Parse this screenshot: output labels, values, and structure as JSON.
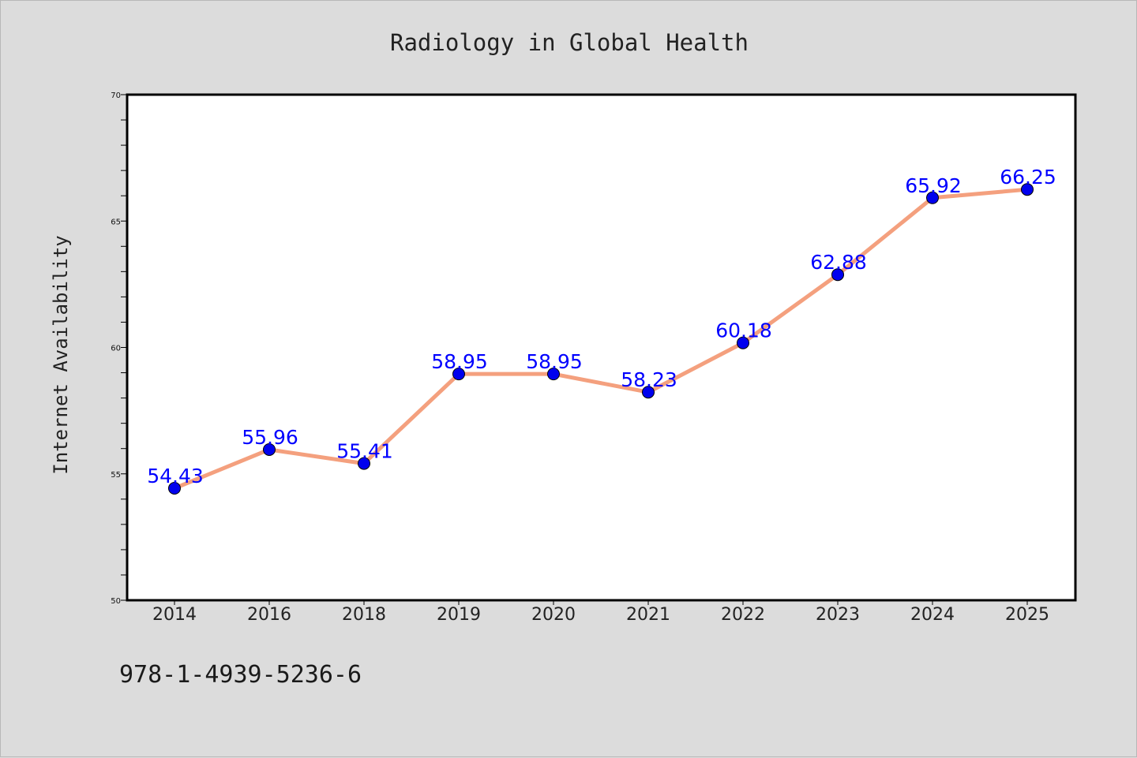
{
  "chart_data": {
    "type": "line",
    "title": "Radiology in Global Health",
    "xlabel": "",
    "ylabel": "Internet Availability",
    "categories": [
      "2014",
      "2016",
      "2018",
      "2019",
      "2020",
      "2021",
      "2022",
      "2023",
      "2024",
      "2025"
    ],
    "series": [
      {
        "values": [
          54.43,
          55.96,
          55.41,
          58.95,
          58.95,
          58.23,
          60.18,
          62.88,
          65.92,
          66.25
        ]
      }
    ],
    "data_labels": [
      "54.43",
      "55.96",
      "55.41",
      "58.95",
      "58.95",
      "58.23",
      "60.18",
      "62.88",
      "65.92",
      "66.25"
    ],
    "ylim": [
      50,
      70
    ],
    "yticks": [
      50,
      55,
      60,
      65,
      70
    ],
    "grid": false,
    "legend": "none",
    "colors": {
      "line": "#f4a07e",
      "marker": "#0000ee",
      "label": "#0000ff",
      "background": "#dcdcdc",
      "plot": "#ffffff"
    }
  },
  "footer": {
    "isbn": "978-1-4939-5236-6"
  }
}
